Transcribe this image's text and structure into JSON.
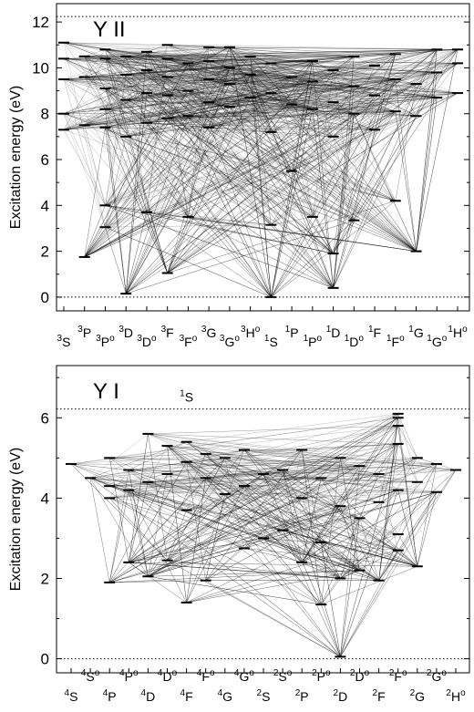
{
  "chart_data": [
    {
      "type": "scatter",
      "title": "Y II",
      "ylabel": "Excitation energy (eV)",
      "ylim": [
        -0.6,
        12.8
      ],
      "yticks": [
        0,
        2,
        4,
        6,
        8,
        10,
        12
      ],
      "dotted_lines": [
        0,
        12.24
      ],
      "terms": [
        {
          "label": "3S",
          "sup": "3",
          "base": "S",
          "odd": false
        },
        {
          "label": "3P",
          "sup": "3",
          "base": "P",
          "odd": false
        },
        {
          "label": "3Po",
          "sup": "3",
          "base": "P",
          "odd": true
        },
        {
          "label": "3D",
          "sup": "3",
          "base": "D",
          "odd": false
        },
        {
          "label": "3Do",
          "sup": "3",
          "base": "D",
          "odd": true
        },
        {
          "label": "3F",
          "sup": "3",
          "base": "F",
          "odd": false
        },
        {
          "label": "3Fo",
          "sup": "3",
          "base": "F",
          "odd": true
        },
        {
          "label": "3G",
          "sup": "3",
          "base": "G",
          "odd": false
        },
        {
          "label": "3Go",
          "sup": "3",
          "base": "G",
          "odd": true
        },
        {
          "label": "3Ho",
          "sup": "3",
          "base": "H",
          "odd": true
        },
        {
          "label": "1S",
          "sup": "1",
          "base": "S",
          "odd": false
        },
        {
          "label": "1P",
          "sup": "1",
          "base": "P",
          "odd": false
        },
        {
          "label": "1Po",
          "sup": "1",
          "base": "P",
          "odd": true
        },
        {
          "label": "1D",
          "sup": "1",
          "base": "D",
          "odd": false
        },
        {
          "label": "1Do",
          "sup": "1",
          "base": "D",
          "odd": true
        },
        {
          "label": "1F",
          "sup": "1",
          "base": "F",
          "odd": false
        },
        {
          "label": "1Fo",
          "sup": "1",
          "base": "F",
          "odd": true
        },
        {
          "label": "1G",
          "sup": "1",
          "base": "G",
          "odd": false
        },
        {
          "label": "1Go",
          "sup": "1",
          "base": "G",
          "odd": true
        },
        {
          "label": "1Ho",
          "sup": "1",
          "base": "H",
          "odd": true
        }
      ],
      "levels": [
        {
          "term": 0,
          "energies": [
            7.3,
            8.0,
            9.5,
            10.4,
            11.1
          ]
        },
        {
          "term": 1,
          "energies": [
            1.75,
            7.5,
            9.6,
            10.5
          ]
        },
        {
          "term": 2,
          "energies": [
            3.05,
            4.0,
            7.4,
            8.2,
            9.1,
            10.4,
            10.8
          ]
        },
        {
          "term": 3,
          "energies": [
            0.15,
            7.0,
            8.6,
            9.7,
            10.5
          ]
        },
        {
          "term": 4,
          "energies": [
            3.7,
            7.6,
            8.9,
            9.9,
            10.7
          ]
        },
        {
          "term": 5,
          "energies": [
            1.05,
            7.8,
            8.8,
            9.6,
            10.4,
            11.0
          ]
        },
        {
          "term": 6,
          "energies": [
            3.5,
            7.9,
            9.0,
            10.2
          ]
        },
        {
          "term": 7,
          "energies": [
            7.4,
            8.5,
            9.5,
            10.3,
            10.9
          ]
        },
        {
          "term": 8,
          "energies": [
            8.3,
            9.3,
            10.0,
            10.9
          ]
        },
        {
          "term": 9,
          "energies": [
            8.7,
            9.7,
            10.5
          ]
        },
        {
          "term": 10,
          "energies": [
            0.0,
            3.15,
            7.2,
            8.9,
            10.2
          ]
        },
        {
          "term": 11,
          "energies": [
            5.5,
            8.4,
            9.6
          ]
        },
        {
          "term": 12,
          "energies": [
            3.5,
            8.2,
            9.4,
            10.3
          ]
        },
        {
          "term": 13,
          "energies": [
            0.4,
            1.9,
            7.0,
            8.5,
            9.9
          ]
        },
        {
          "term": 14,
          "energies": [
            3.35,
            8.0,
            9.2,
            10.5
          ]
        },
        {
          "term": 15,
          "energies": [
            7.3,
            8.8,
            10.1
          ]
        },
        {
          "term": 16,
          "energies": [
            4.2,
            8.1,
            9.5,
            10.6
          ]
        },
        {
          "term": 17,
          "energies": [
            2.0,
            7.9,
            9.3
          ]
        },
        {
          "term": 18,
          "energies": [
            8.7,
            9.8,
            10.8
          ]
        },
        {
          "term": 19,
          "energies": [
            8.9,
            10.2,
            10.8
          ]
        }
      ]
    },
    {
      "type": "scatter",
      "title": "Y I",
      "ylabel": "Excitation energy (eV)",
      "ylim": [
        -0.35,
        7.3
      ],
      "yticks": [
        0,
        2,
        4,
        6
      ],
      "dotted_lines": [
        0,
        6.22
      ],
      "annotation": {
        "sup": "1",
        "base": "S",
        "energy": 6.22,
        "term": 6
      },
      "terms": [
        {
          "label": "4S",
          "sup": "4",
          "base": "S",
          "odd": false
        },
        {
          "label": "4So",
          "sup": "4",
          "base": "S",
          "odd": true
        },
        {
          "label": "4P",
          "sup": "4",
          "base": "P",
          "odd": false
        },
        {
          "label": "4Po",
          "sup": "4",
          "base": "P",
          "odd": true
        },
        {
          "label": "4D",
          "sup": "4",
          "base": "D",
          "odd": false
        },
        {
          "label": "4Do",
          "sup": "4",
          "base": "D",
          "odd": true
        },
        {
          "label": "4F",
          "sup": "4",
          "base": "F",
          "odd": false
        },
        {
          "label": "4Fo",
          "sup": "4",
          "base": "F",
          "odd": true
        },
        {
          "label": "4G",
          "sup": "4",
          "base": "G",
          "odd": false
        },
        {
          "label": "4Go",
          "sup": "4",
          "base": "G",
          "odd": true
        },
        {
          "label": "2S",
          "sup": "2",
          "base": "S",
          "odd": false
        },
        {
          "label": "2So",
          "sup": "2",
          "base": "S",
          "odd": true
        },
        {
          "label": "2P",
          "sup": "2",
          "base": "P",
          "odd": false
        },
        {
          "label": "2Po",
          "sup": "2",
          "base": "P",
          "odd": true
        },
        {
          "label": "2D",
          "sup": "2",
          "base": "D",
          "odd": false
        },
        {
          "label": "2Do",
          "sup": "2",
          "base": "D",
          "odd": true
        },
        {
          "label": "2F",
          "sup": "2",
          "base": "F",
          "odd": false
        },
        {
          "label": "2Fo",
          "sup": "2",
          "base": "F",
          "odd": true
        },
        {
          "label": "2G",
          "sup": "2",
          "base": "G",
          "odd": false
        },
        {
          "label": "2Go",
          "sup": "2",
          "base": "G",
          "odd": true
        },
        {
          "label": "2Ho",
          "sup": "2",
          "base": "H",
          "odd": true
        }
      ],
      "levels": [
        {
          "term": 0,
          "energies": [
            4.85
          ]
        },
        {
          "term": 1,
          "energies": [
            4.5
          ]
        },
        {
          "term": 2,
          "energies": [
            1.9,
            4.0,
            4.3,
            5.0
          ]
        },
        {
          "term": 3,
          "energies": [
            2.4,
            4.2,
            4.7
          ]
        },
        {
          "term": 4,
          "energies": [
            2.05,
            4.4,
            5.6
          ]
        },
        {
          "term": 5,
          "energies": [
            2.45,
            4.6,
            5.3
          ]
        },
        {
          "term": 6,
          "energies": [
            1.4,
            3.7,
            4.9,
            5.4
          ]
        },
        {
          "term": 7,
          "energies": [
            1.95,
            4.5,
            5.1
          ]
        },
        {
          "term": 8,
          "energies": [
            4.1,
            5.0
          ]
        },
        {
          "term": 9,
          "energies": [
            2.75,
            4.3,
            5.2
          ]
        },
        {
          "term": 10,
          "energies": [
            3.0,
            4.6
          ]
        },
        {
          "term": 11,
          "energies": [
            3.2,
            4.7
          ]
        },
        {
          "term": 12,
          "energies": [
            2.4,
            4.0,
            5.2
          ]
        },
        {
          "term": 13,
          "energies": [
            1.35,
            2.9,
            4.5
          ]
        },
        {
          "term": 14,
          "energies": [
            0.05,
            2.0,
            3.8,
            5.0
          ]
        },
        {
          "term": 15,
          "energies": [
            2.2,
            3.5,
            4.8
          ]
        },
        {
          "term": 16,
          "energies": [
            1.95,
            3.9,
            4.6
          ]
        },
        {
          "term": 17,
          "energies": [
            2.7,
            3.1,
            4.2,
            5.35,
            5.8,
            6.0,
            6.1
          ]
        },
        {
          "term": 18,
          "energies": [
            2.3,
            4.4,
            5.0
          ]
        },
        {
          "term": 19,
          "energies": [
            4.15,
            4.85
          ]
        },
        {
          "term": 20,
          "energies": [
            4.7
          ]
        }
      ]
    }
  ]
}
